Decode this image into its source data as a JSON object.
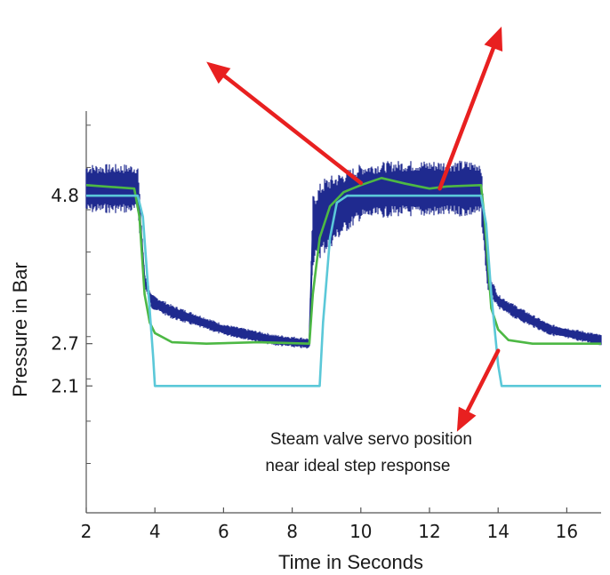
{
  "chart_data": {
    "type": "line",
    "title": "",
    "xlabel": "Time in Seconds",
    "ylabel": "Pressure in Bar",
    "xlim": [
      2,
      17
    ],
    "ylim": [
      0.3,
      6.0
    ],
    "x_ticks": [
      "2",
      "4",
      "6",
      "8",
      "10",
      "12",
      "14",
      "16"
    ],
    "y_ticks": [
      "4.8",
      "2.7",
      "2.1"
    ],
    "grid": false,
    "legend": "none",
    "series": [
      {
        "color": "#1f2a8f",
        "noise_band": true,
        "x": [
          2.0,
          3.5,
          3.7,
          3.9,
          4.5,
          6.0,
          7.5,
          8.5,
          8.6,
          8.9,
          9.5,
          10.0,
          11.0,
          12.5,
          13.5,
          13.7,
          14.0,
          14.5,
          15.5,
          17.0
        ],
        "y": [
          4.9,
          4.9,
          3.6,
          3.3,
          3.15,
          2.9,
          2.75,
          2.7,
          4.3,
          4.5,
          4.7,
          4.85,
          4.9,
          4.9,
          4.9,
          3.6,
          3.3,
          3.15,
          2.9,
          2.75
        ],
        "band_halfwidth": [
          0.35,
          0.35,
          0.1,
          0.1,
          0.1,
          0.08,
          0.08,
          0.08,
          0.5,
          0.55,
          0.45,
          0.4,
          0.4,
          0.4,
          0.4,
          0.15,
          0.1,
          0.1,
          0.08,
          0.08
        ]
      },
      {
        "color": "#4db844",
        "x": [
          2.0,
          3.4,
          3.55,
          3.7,
          3.85,
          4.0,
          4.5,
          5.5,
          7.0,
          8.5,
          8.6,
          8.8,
          9.1,
          9.5,
          10.0,
          10.6,
          11.3,
          12.0,
          12.5,
          13.5,
          13.6,
          13.8,
          14.0,
          14.3,
          15.0,
          16.0,
          17.0
        ],
        "y": [
          4.95,
          4.9,
          4.5,
          3.4,
          3.0,
          2.85,
          2.72,
          2.7,
          2.72,
          2.7,
          3.4,
          4.2,
          4.65,
          4.85,
          4.95,
          5.05,
          4.97,
          4.9,
          4.93,
          4.95,
          4.5,
          3.2,
          2.9,
          2.75,
          2.7,
          2.7,
          2.7
        ]
      },
      {
        "color": "#5bc8d8",
        "x": [
          2.0,
          3.5,
          3.65,
          3.8,
          3.95,
          4.0,
          8.8,
          8.9,
          9.1,
          9.3,
          9.6,
          13.5,
          13.65,
          13.8,
          14.0,
          14.1,
          17.0
        ],
        "y": [
          4.8,
          4.8,
          4.5,
          3.5,
          2.5,
          2.1,
          2.1,
          3.0,
          4.2,
          4.7,
          4.8,
          4.8,
          4.4,
          3.4,
          2.4,
          2.1,
          2.1
        ]
      }
    ],
    "annotations": [
      {
        "lines": [
          "Steam valve servo position",
          "near ideal step response"
        ],
        "x": 10.3,
        "y": 1.2
      }
    ],
    "arrows": [
      {
        "color": "#e82020",
        "from": [
          10.0,
          4.98
        ],
        "to": [
          5.5,
          6.7
        ]
      },
      {
        "color": "#e82020",
        "from": [
          12.3,
          4.9
        ],
        "to": [
          14.1,
          7.2
        ]
      },
      {
        "color": "#e82020",
        "from": [
          14.0,
          2.6
        ],
        "to": [
          12.8,
          1.45
        ]
      }
    ]
  }
}
